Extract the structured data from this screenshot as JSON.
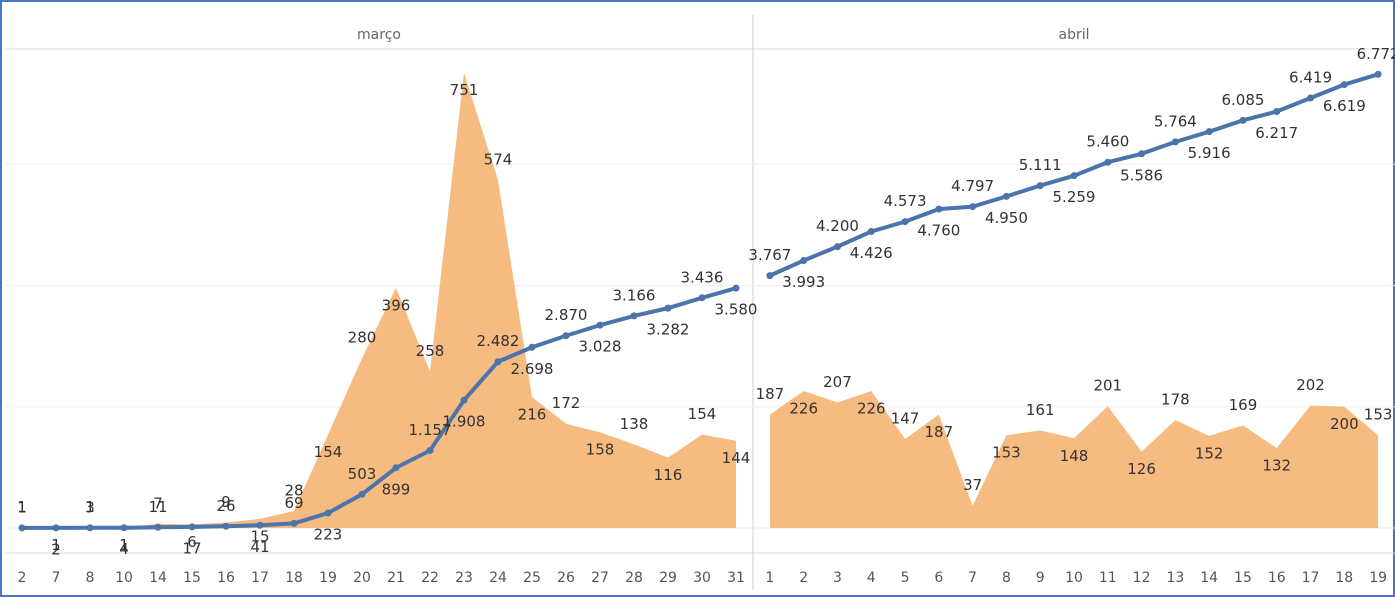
{
  "chart_data": [
    {
      "type": "combo",
      "title": "março",
      "categories": [
        "2",
        "7",
        "8",
        "10",
        "14",
        "15",
        "16",
        "17",
        "18",
        "19",
        "20",
        "21",
        "22",
        "23",
        "24",
        "25",
        "26",
        "27",
        "28",
        "29",
        "30",
        "31"
      ],
      "ylim": [
        0,
        790
      ],
      "yticks": [
        0,
        200,
        400,
        600
      ],
      "y2lim": [
        0,
        7150
      ],
      "grid": true,
      "series": [
        {
          "type": "area",
          "color": "#f5b77a",
          "values": [
            1,
            1,
            1,
            1,
            7,
            6,
            9,
            15,
            28,
            154,
            280,
            396,
            258,
            751,
            574,
            216,
            172,
            158,
            138,
            116,
            154,
            144
          ]
        },
        {
          "type": "line",
          "axis": "y2",
          "color": "#4a74aa",
          "values": [
            1,
            2,
            3,
            4,
            11,
            17,
            26,
            41,
            69,
            223,
            503,
            899,
            1157,
            1908,
            2482,
            2698,
            2870,
            3028,
            3166,
            3282,
            3436,
            3580
          ],
          "value_labels": [
            "1",
            "2",
            "3",
            "4",
            "11",
            "17",
            "26",
            "41",
            "69",
            "223",
            "503",
            "899",
            "1.157",
            "1.908",
            "2.482",
            "2.698",
            "2.870",
            "3.028",
            "3.166",
            "3.282",
            "3.436",
            "3.580"
          ]
        }
      ]
    },
    {
      "type": "combo",
      "title": "abril",
      "categories": [
        "1",
        "2",
        "3",
        "4",
        "5",
        "6",
        "7",
        "8",
        "9",
        "10",
        "11",
        "12",
        "13",
        "14",
        "15",
        "16",
        "17",
        "18",
        "19"
      ],
      "ylim": [
        0,
        790
      ],
      "yticks": [
        0,
        200,
        400,
        600
      ],
      "y2lim": [
        0,
        7150
      ],
      "grid": true,
      "series": [
        {
          "type": "area",
          "color": "#f5b77a",
          "values": [
            187,
            226,
            207,
            226,
            147,
            187,
            37,
            153,
            161,
            148,
            201,
            126,
            178,
            152,
            169,
            132,
            202,
            200,
            153
          ]
        },
        {
          "type": "line",
          "axis": "y2",
          "color": "#4a74aa",
          "values": [
            3767,
            3993,
            4200,
            4426,
            4573,
            4760,
            4797,
            4950,
            5111,
            5259,
            5460,
            5586,
            5764,
            5916,
            6085,
            6217,
            6419,
            6619,
            6772
          ],
          "value_labels": [
            "3.767",
            "3.993",
            "4.200",
            "4.426",
            "4.573",
            "4.760",
            "4.797",
            "4.950",
            "5.111",
            "5.259",
            "5.460",
            "5.586",
            "5.764",
            "5.916",
            "6.085",
            "6.217",
            "6.419",
            "6.619",
            "6.772"
          ]
        }
      ]
    }
  ]
}
